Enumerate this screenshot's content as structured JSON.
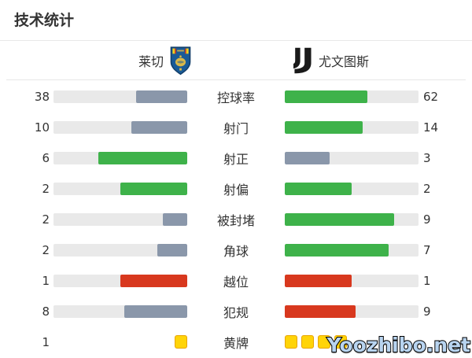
{
  "title": "技术统计",
  "watermark": "Yoozhibo.net",
  "teams": {
    "home": {
      "name": "莱切",
      "badge_icon": "lecce-crest-icon"
    },
    "away": {
      "name": "尤文图斯",
      "badge_icon": "juventus-logo-icon"
    }
  },
  "colors": {
    "positive": "#3eb24a",
    "neutral": "#8a97aa",
    "negative": "#d8381e",
    "bar_background": "#e9e9e9",
    "card_fill": "#ffd408",
    "card_border": "#e8a400"
  },
  "stats": [
    {
      "label": "控球率",
      "home": {
        "value": "38",
        "color": "neutral"
      },
      "away": {
        "value": "62",
        "color": "positive"
      }
    },
    {
      "label": "射门",
      "home": {
        "value": "10",
        "color": "neutral"
      },
      "away": {
        "value": "14",
        "color": "positive"
      }
    },
    {
      "label": "射正",
      "home": {
        "value": "6",
        "color": "positive"
      },
      "away": {
        "value": "3",
        "color": "neutral"
      }
    },
    {
      "label": "射偏",
      "home": {
        "value": "2",
        "color": "positive"
      },
      "away": {
        "value": "2",
        "color": "positive"
      }
    },
    {
      "label": "被封堵",
      "home": {
        "value": "2",
        "color": "neutral"
      },
      "away": {
        "value": "9",
        "color": "positive"
      }
    },
    {
      "label": "角球",
      "home": {
        "value": "2",
        "color": "neutral"
      },
      "away": {
        "value": "7",
        "color": "positive"
      }
    },
    {
      "label": "越位",
      "home": {
        "value": "1",
        "color": "negative"
      },
      "away": {
        "value": "1",
        "color": "negative"
      }
    },
    {
      "label": "犯规",
      "home": {
        "value": "8",
        "color": "neutral"
      },
      "away": {
        "value": "9",
        "color": "negative"
      }
    },
    {
      "label": "黄牌",
      "type": "cards",
      "home": {
        "value": "1",
        "cards": 1
      },
      "away": {
        "value": "",
        "cards": 4
      }
    }
  ],
  "chart_data": {
    "type": "bar",
    "title": "技术统计",
    "categories": [
      "控球率",
      "射门",
      "射正",
      "射偏",
      "被封堵",
      "角球",
      "越位",
      "犯规",
      "黄牌"
    ],
    "series": [
      {
        "name": "莱切",
        "values": [
          38,
          10,
          6,
          2,
          2,
          2,
          1,
          8,
          1
        ]
      },
      {
        "name": "尤文图斯",
        "values": [
          62,
          14,
          3,
          2,
          9,
          7,
          1,
          9,
          4
        ]
      }
    ],
    "layout": "horizontal paired bars, category labels centered between the two bars, each bar length proportional to value share of row total",
    "legend_position": "top header with club crests"
  }
}
